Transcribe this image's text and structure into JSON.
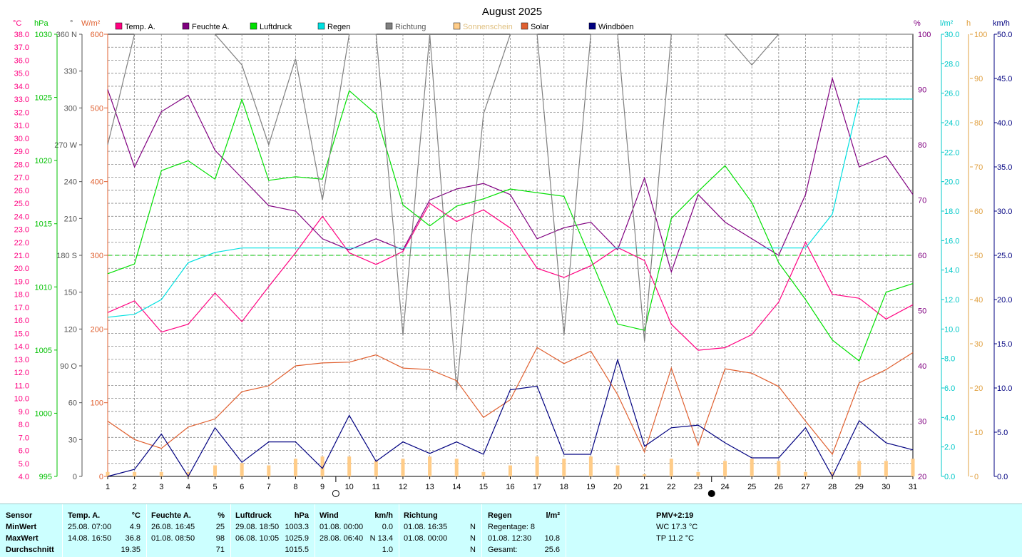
{
  "title": "August 2025",
  "units": {
    "temp": "°C",
    "pressure": "hPa",
    "direction": "°",
    "solar": "W/m²",
    "humidity": "%",
    "rain": "l/m²",
    "sunshine": "h",
    "wind": "km/h"
  },
  "legend": [
    {
      "label": "Temp. A.",
      "color": "#ff0080"
    },
    {
      "label": "Feuchte A.",
      "color": "#800080"
    },
    {
      "label": "Luftdruck",
      "color": "#00e000"
    },
    {
      "label": "Regen",
      "color": "#00e0e0"
    },
    {
      "label": "Richtung",
      "color": "#808080"
    },
    {
      "label": "Sonnenschein",
      "color": "#ffcc88"
    },
    {
      "label": "Solar",
      "color": "#e06030"
    },
    {
      "label": "Windböen",
      "color": "#000080"
    }
  ],
  "chart_data": {
    "type": "line",
    "title": "August 2025",
    "x": [
      1,
      2,
      3,
      4,
      5,
      6,
      7,
      8,
      9,
      10,
      11,
      12,
      13,
      14,
      15,
      16,
      17,
      18,
      19,
      20,
      21,
      22,
      23,
      24,
      25,
      26,
      27,
      28,
      29,
      30,
      31
    ],
    "axes": {
      "temp": {
        "min": 4.0,
        "max": 38.0,
        "ticks": [
          "38.0",
          "37.0",
          "36.0",
          "35.0",
          "34.0",
          "33.0",
          "32.0",
          "31.0",
          "30.0",
          "29.0",
          "28.0",
          "27.0",
          "26.0",
          "25.0",
          "24.0",
          "23.0",
          "22.0",
          "21.0",
          "20.0",
          "19.0",
          "18.0",
          "17.0",
          "16.0",
          "15.0",
          "14.0",
          "13.0",
          "12.0",
          "11.0",
          "10.0",
          "9.0",
          "8.0",
          "7.0",
          "6.0",
          "5.0",
          "4.0"
        ]
      },
      "pressure": {
        "min": 995,
        "max": 1031,
        "ticks": [
          "1030",
          "1025",
          "1020",
          "1015",
          "1010",
          "1005",
          "1000",
          "995"
        ]
      },
      "direction": {
        "min": 0,
        "max": 360,
        "ticks": [
          "360 N",
          "330",
          "300",
          "270 W",
          "240",
          "210",
          "180 S",
          "150",
          "120",
          "90  O",
          "60",
          "30",
          "0"
        ]
      },
      "solar": {
        "min": 0,
        "max": 600,
        "ticks": [
          "600",
          "500",
          "400",
          "300",
          "200",
          "100",
          "0"
        ]
      },
      "humidity": {
        "min": 20,
        "max": 100,
        "ticks": [
          "100",
          "90",
          "80",
          "70",
          "60",
          "50",
          "40",
          "30",
          "20"
        ]
      },
      "rain": {
        "min": 0,
        "max": 30,
        "ticks": [
          "30.0",
          "28.0",
          "26.0",
          "24.0",
          "22.0",
          "20.0",
          "18.0",
          "16.0",
          "14.0",
          "12.0",
          "10.0",
          "8.0",
          "6.0",
          "4.0",
          "2.0",
          "0.0"
        ]
      },
      "sunshine": {
        "min": 0,
        "max": 100,
        "ticks": [
          "100",
          "90",
          "80",
          "70",
          "60",
          "50",
          "40",
          "30",
          "20",
          "10",
          "0"
        ]
      },
      "wind": {
        "min": 0,
        "max": 50,
        "ticks": [
          "50.0",
          "45.0",
          "40.0",
          "35.0",
          "30.0",
          "25.0",
          "20.0",
          "15.0",
          "10.0",
          "5.0",
          "0.0"
        ]
      }
    },
    "series": [
      {
        "name": "Temp. A.",
        "axis": "temp",
        "color": "#ff0080",
        "values": [
          16.6,
          17.5,
          15.1,
          15.7,
          18.1,
          15.9,
          18.6,
          21.2,
          24.0,
          21.2,
          20.3,
          21.3,
          25.0,
          23.6,
          24.5,
          23.1,
          20.0,
          19.3,
          20.2,
          21.6,
          20.6,
          15.7,
          13.7,
          13.9,
          14.9,
          17.4,
          22.0,
          18.0,
          17.7,
          16.1,
          17.2
        ]
      },
      {
        "name": "Feuchte A.",
        "axis": "humidity",
        "color": "#800080",
        "values": [
          90,
          76,
          86,
          89,
          79,
          74,
          69,
          68,
          63,
          61,
          63,
          61,
          70,
          72,
          73,
          71,
          63,
          65,
          66,
          61,
          74,
          57,
          71,
          66,
          63,
          60,
          71,
          92,
          76,
          78,
          71
        ]
      },
      {
        "name": "Luftdruck",
        "axis": "pressure",
        "color": "#00e000",
        "values": [
          1011.5,
          1012.3,
          1019.9,
          1020.7,
          1019.2,
          1025.7,
          1019.1,
          1019.4,
          1019.2,
          1026.4,
          1024.5,
          1017.1,
          1015.4,
          1017.0,
          1017.6,
          1018.4,
          1018.1,
          1017.8,
          1012.7,
          1007.4,
          1006.9,
          1016.0,
          1018.2,
          1020.3,
          1017.3,
          1012.4,
          1009.4,
          1006.1,
          1004.4,
          1010.0,
          1010.7
        ]
      },
      {
        "name": "Regen",
        "axis": "rain",
        "color": "#00e0e0",
        "values": [
          10.8,
          11.0,
          12.0,
          14.5,
          15.2,
          15.5,
          15.5,
          15.5,
          15.5,
          15.5,
          15.5,
          15.5,
          15.5,
          15.5,
          15.5,
          15.5,
          15.5,
          15.5,
          15.5,
          15.5,
          15.5,
          15.5,
          15.5,
          15.5,
          15.5,
          15.5,
          15.5,
          17.8,
          25.6,
          25.6,
          25.6
        ]
      },
      {
        "name": "Richtung",
        "axis": "direction",
        "color": "#808080",
        "values": [
          270,
          360,
          360,
          360,
          360,
          335,
          270,
          340,
          225,
          360,
          360,
          115,
          360,
          70,
          295,
          360,
          360,
          115,
          360,
          360,
          110,
          360,
          360,
          360,
          335,
          360,
          360,
          360,
          360,
          360,
          360
        ]
      },
      {
        "name": "Sonnenschein",
        "axis": "sunshine",
        "color": "#ffcc88",
        "kind": "bar",
        "values": [
          1,
          1,
          1,
          1,
          2.5,
          3,
          2.5,
          4,
          4.5,
          4.5,
          3.5,
          4,
          4.5,
          4,
          1,
          2.5,
          4.5,
          4,
          4.5,
          2.5,
          0.5,
          4,
          1,
          3.5,
          4,
          3.5,
          1,
          1,
          3.5,
          3.5,
          4
        ]
      },
      {
        "name": "Solar",
        "axis": "solar",
        "color": "#e06030",
        "values": [
          75,
          50,
          38,
          67,
          78,
          115,
          123,
          150,
          154,
          155,
          165,
          147,
          145,
          130,
          80,
          104,
          175,
          153,
          170,
          111,
          33,
          147,
          42,
          146,
          140,
          122,
          75,
          30,
          127,
          145,
          168
        ]
      },
      {
        "name": "Windböen",
        "axis": "wind",
        "color": "#000080",
        "values": [
          0,
          0.8,
          4.8,
          0,
          5.5,
          1.6,
          3.9,
          3.9,
          0.9,
          6.9,
          1.7,
          3.9,
          2.6,
          3.9,
          2.5,
          9.8,
          10.2,
          2.5,
          2.5,
          13.2,
          3.4,
          5.5,
          5.8,
          3.8,
          2.1,
          2.1,
          5.5,
          0,
          6.3,
          3.8,
          3.0
        ]
      }
    ],
    "moon_markers": [
      {
        "day": 9,
        "phase": "full-moon"
      },
      {
        "day": 23,
        "phase": "new-moon"
      }
    ]
  },
  "stats": {
    "sensor": {
      "header": "Sensor",
      "rows": [
        "MinWert",
        "MaxWert",
        "Durchschnitt"
      ]
    },
    "temp": {
      "header": "Temp. A.",
      "unit": "°C",
      "min": {
        "date": "25.08.  07:00",
        "value": "4.9"
      },
      "max": {
        "date": "14.08.  16:50",
        "value": "36.8"
      },
      "avg": "19.35"
    },
    "humidity": {
      "header": "Feuchte A.",
      "unit": "%",
      "min": {
        "date": "26.08.  16:45",
        "value": "25"
      },
      "max": {
        "date": "01.08.  08:50",
        "value": "98"
      },
      "avg": "71"
    },
    "pressure": {
      "header": "Luftdruck",
      "unit": "hPa",
      "min": {
        "date": "29.08.  18:50",
        "value": "1003.3"
      },
      "max": {
        "date": "06.08.  10:05",
        "value": "1025.9"
      },
      "avg": "1015.5"
    },
    "wind": {
      "header": "Wind",
      "unit": "km/h",
      "min": {
        "date": "01.08.  00:00",
        "value": "0.0"
      },
      "max": {
        "date": "28.08.  06:40",
        "value": "N 13.4"
      },
      "avg": "1.0"
    },
    "direction": {
      "header": "Richtung",
      "min": {
        "date": "01.08.  16:35",
        "value": "N"
      },
      "max": {
        "date": "01.08.  00:00",
        "value": "N"
      },
      "avg": "N"
    },
    "rain": {
      "header": "Regen",
      "unit": "l/m²",
      "row1": {
        "label": "Regentage: 8",
        "value": ""
      },
      "row2": {
        "label": "01.08.  12:30",
        "value": "10.8"
      },
      "row3": {
        "label": "Gesamt:",
        "value": "25.6"
      }
    },
    "pmv": {
      "header": "PMV+2:19",
      "wc": "WC 17.3 °C",
      "tp": "TP 11.2 °C"
    }
  }
}
